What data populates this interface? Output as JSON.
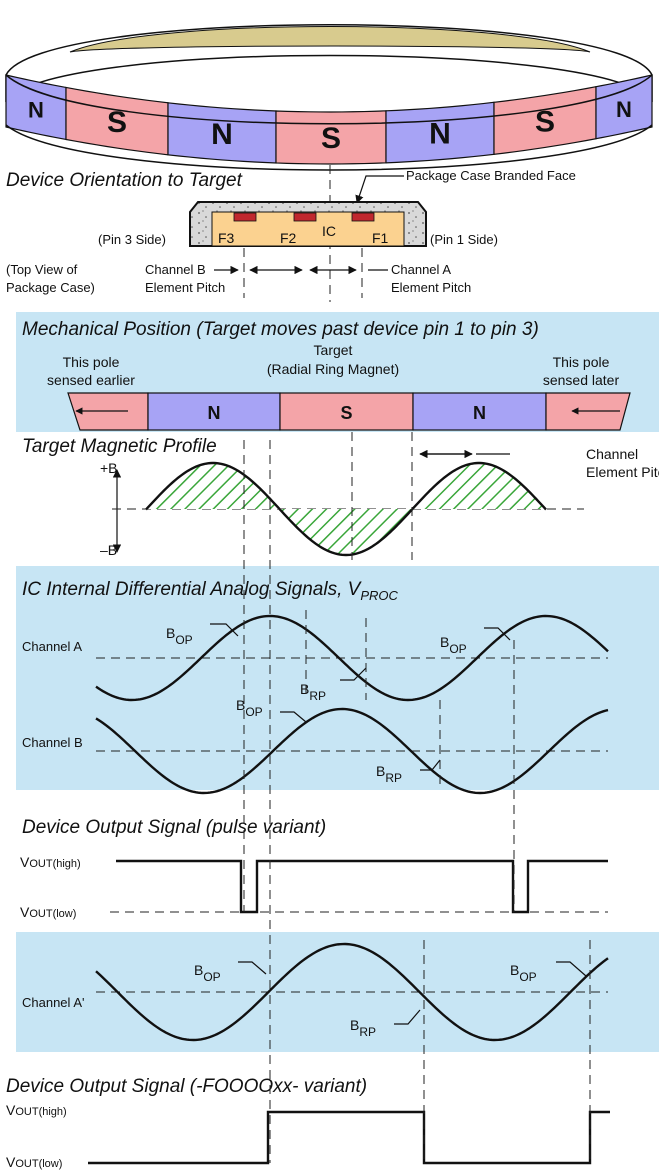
{
  "colors": {
    "north": "#a7a3f5",
    "south": "#f4a4a8",
    "panel": "#c7e5f4",
    "ic_body": "#fbd290",
    "element": "#c0272d",
    "package": "#d9d9d9",
    "hatch": "#3aa63a",
    "ring_inner": "#d8cb8e"
  },
  "ring": {
    "poles": [
      "N",
      "S",
      "N",
      "S",
      "N",
      "S",
      "N"
    ]
  },
  "orientation": {
    "title": "Device Orientation to Target",
    "branded_face": "Package Case Branded Face",
    "pin3_side": "(Pin 3 Side)",
    "pin1_side": "(Pin 1 Side)",
    "f3": "F3",
    "f2": "F2",
    "ic": "IC",
    "f1": "F1",
    "top_view_1": "(Top View of",
    "top_view_2": "Package Case)",
    "channel_b_1": "Channel B",
    "channel_b_2": "Element Pitch",
    "channel_a_1": "Channel A",
    "channel_a_2": "Element Pitch"
  },
  "mechanical": {
    "title": "Mechanical Position (Target moves past device pin 1 to pin 3)",
    "target_1": "Target",
    "target_2": "(Radial Ring Magnet)",
    "earlier_1": "This pole",
    "earlier_2": "sensed earlier",
    "later_1": "This pole",
    "later_2": "sensed later",
    "poles": [
      "N",
      "S",
      "N"
    ]
  },
  "profile": {
    "title": "Target Magnetic Profile",
    "plus_b": "+B",
    "minus_b": "–B",
    "pitch_1": "Channel",
    "pitch_2": "Element Pitch"
  },
  "internal": {
    "title": "IC Internal Differential Analog Signals, V",
    "title_sub": "PROC",
    "channel_a": "Channel A",
    "channel_b": "Channel B",
    "b": "B",
    "op": "OP",
    "rp": "RP"
  },
  "pulse": {
    "title": "Device Output Signal (pulse variant)",
    "vout": "V",
    "high": "OUT(high)",
    "low": "OUT(low)"
  },
  "channel_a_prime": {
    "label": "Channel A'"
  },
  "foooo": {
    "title": "Device Output Signal (-FOOOOxx- variant)"
  }
}
